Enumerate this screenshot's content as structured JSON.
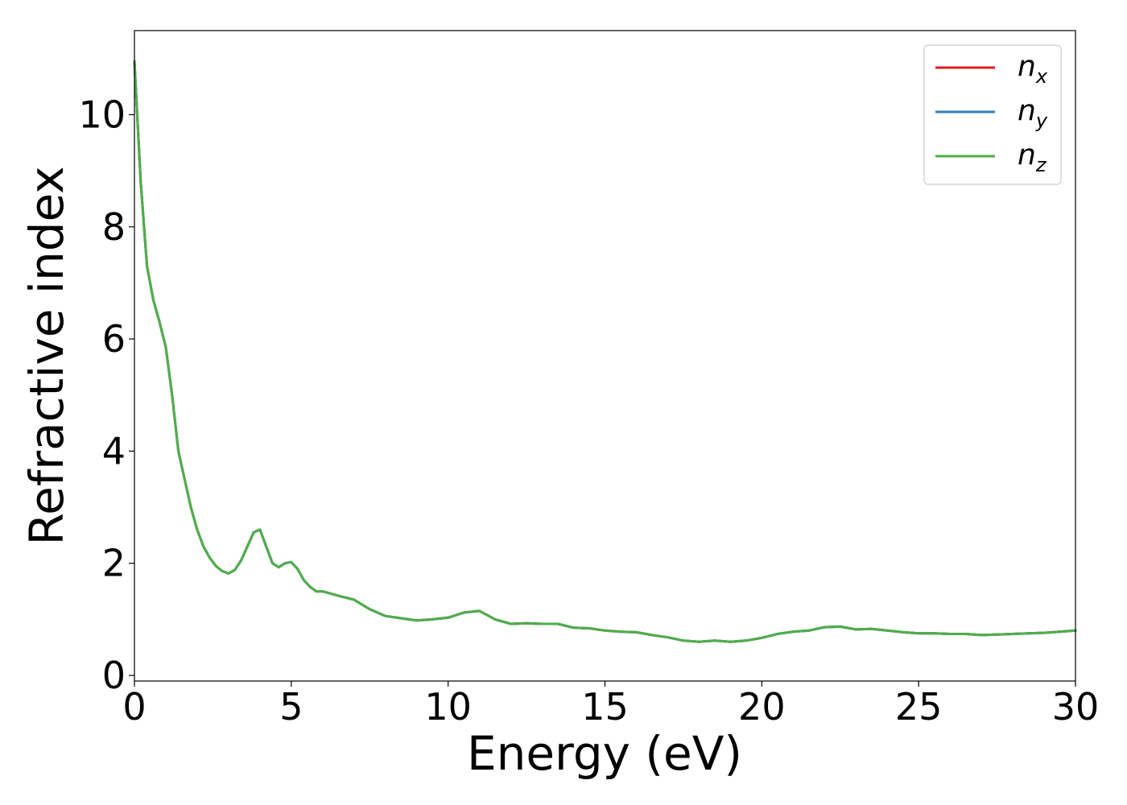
{
  "chart_data": {
    "type": "line",
    "title": "",
    "xlabel": "Energy (eV)",
    "ylabel": "Refractive index",
    "xlim": [
      0,
      30
    ],
    "ylim": [
      -0.1,
      11.5
    ],
    "xticks": [
      0,
      5,
      10,
      15,
      20,
      25,
      30
    ],
    "yticks": [
      0,
      2,
      4,
      6,
      8,
      10
    ],
    "grid": false,
    "legend_position": "top-right",
    "x": [
      0,
      0.2,
      0.4,
      0.6,
      0.8,
      1.0,
      1.2,
      1.4,
      1.6,
      1.8,
      2.0,
      2.2,
      2.4,
      2.6,
      2.8,
      3.0,
      3.2,
      3.4,
      3.6,
      3.8,
      4.0,
      4.2,
      4.4,
      4.6,
      4.8,
      5.0,
      5.2,
      5.4,
      5.6,
      5.8,
      6.0,
      6.5,
      7.0,
      7.5,
      8.0,
      8.5,
      9.0,
      9.5,
      10.0,
      10.5,
      11.0,
      11.5,
      12.0,
      12.5,
      13.0,
      13.5,
      14.0,
      14.5,
      15.0,
      15.5,
      16.0,
      16.5,
      17.0,
      17.5,
      18.0,
      18.5,
      19.0,
      19.5,
      20.0,
      20.5,
      21.0,
      21.5,
      22.0,
      22.5,
      23.0,
      23.5,
      24.0,
      24.5,
      25.0,
      25.5,
      26.0,
      26.5,
      27.0,
      27.5,
      28.0,
      28.5,
      29.0,
      29.5,
      30.0
    ],
    "series": [
      {
        "name": "n_x",
        "label_main": "n",
        "label_sub": "x",
        "color": "#e41a1c",
        "values": [
          10.95,
          8.8,
          7.3,
          6.7,
          6.3,
          5.85,
          5.0,
          4.0,
          3.5,
          3.0,
          2.6,
          2.3,
          2.1,
          1.95,
          1.86,
          1.82,
          1.88,
          2.05,
          2.3,
          2.55,
          2.6,
          2.3,
          2.0,
          1.93,
          2.0,
          2.02,
          1.9,
          1.7,
          1.58,
          1.5,
          1.5,
          1.42,
          1.35,
          1.18,
          1.06,
          1.02,
          0.98,
          1.0,
          1.03,
          1.12,
          1.15,
          1.0,
          0.92,
          0.93,
          0.92,
          0.92,
          0.85,
          0.84,
          0.8,
          0.78,
          0.77,
          0.72,
          0.68,
          0.62,
          0.6,
          0.62,
          0.6,
          0.62,
          0.67,
          0.74,
          0.78,
          0.8,
          0.86,
          0.87,
          0.82,
          0.83,
          0.8,
          0.77,
          0.75,
          0.75,
          0.74,
          0.74,
          0.72,
          0.73,
          0.74,
          0.75,
          0.76,
          0.78,
          0.8
        ]
      },
      {
        "name": "n_y",
        "label_main": "n",
        "label_sub": "y",
        "color": "#377eb8",
        "values": [
          10.95,
          8.8,
          7.3,
          6.7,
          6.3,
          5.85,
          5.0,
          4.0,
          3.5,
          3.0,
          2.6,
          2.3,
          2.1,
          1.95,
          1.86,
          1.82,
          1.88,
          2.05,
          2.3,
          2.55,
          2.6,
          2.3,
          2.0,
          1.93,
          2.0,
          2.02,
          1.9,
          1.7,
          1.58,
          1.5,
          1.5,
          1.42,
          1.35,
          1.18,
          1.06,
          1.02,
          0.98,
          1.0,
          1.03,
          1.12,
          1.15,
          1.0,
          0.92,
          0.93,
          0.92,
          0.92,
          0.85,
          0.84,
          0.8,
          0.78,
          0.77,
          0.72,
          0.68,
          0.62,
          0.6,
          0.62,
          0.6,
          0.62,
          0.67,
          0.74,
          0.78,
          0.8,
          0.86,
          0.87,
          0.82,
          0.83,
          0.8,
          0.77,
          0.75,
          0.75,
          0.74,
          0.74,
          0.72,
          0.73,
          0.74,
          0.75,
          0.76,
          0.78,
          0.8
        ]
      },
      {
        "name": "n_z",
        "label_main": "n",
        "label_sub": "z",
        "color": "#4daf4a",
        "values": [
          10.95,
          8.8,
          7.3,
          6.7,
          6.3,
          5.85,
          5.0,
          4.0,
          3.5,
          3.0,
          2.6,
          2.3,
          2.1,
          1.95,
          1.86,
          1.82,
          1.88,
          2.05,
          2.3,
          2.55,
          2.6,
          2.3,
          2.0,
          1.93,
          2.0,
          2.02,
          1.9,
          1.7,
          1.58,
          1.5,
          1.5,
          1.42,
          1.35,
          1.18,
          1.06,
          1.02,
          0.98,
          1.0,
          1.03,
          1.12,
          1.15,
          1.0,
          0.92,
          0.93,
          0.92,
          0.92,
          0.85,
          0.84,
          0.8,
          0.78,
          0.77,
          0.72,
          0.68,
          0.62,
          0.6,
          0.62,
          0.6,
          0.62,
          0.67,
          0.74,
          0.78,
          0.8,
          0.86,
          0.87,
          0.82,
          0.83,
          0.8,
          0.77,
          0.75,
          0.75,
          0.74,
          0.74,
          0.72,
          0.73,
          0.74,
          0.75,
          0.76,
          0.78,
          0.8
        ]
      }
    ]
  }
}
